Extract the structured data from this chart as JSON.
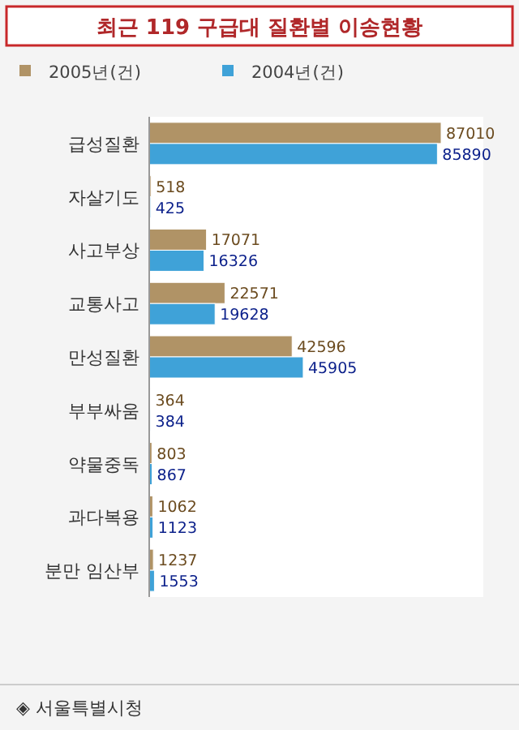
{
  "chart_data": {
    "type": "bar",
    "orientation": "horizontal",
    "title": "최근 119 구급대 질환별 이송현황",
    "categories": [
      "급성질환",
      "자살기도",
      "사고부상",
      "교통사고",
      "만성질환",
      "부부싸움",
      "약물중독",
      "과다복용",
      "분만 임산부"
    ],
    "series": [
      {
        "name": "2005년(건)",
        "color": "#b09366",
        "values": [
          87010,
          518,
          17071,
          22571,
          42596,
          364,
          803,
          1062,
          1237
        ]
      },
      {
        "name": "2004년(건)",
        "color": "#3fa2d8",
        "values": [
          85890,
          425,
          16326,
          19628,
          45905,
          384,
          867,
          1123,
          1553
        ]
      }
    ],
    "data_labels": true,
    "legend": "top",
    "annotations": [
      "◈ 서울특별시청"
    ]
  }
}
